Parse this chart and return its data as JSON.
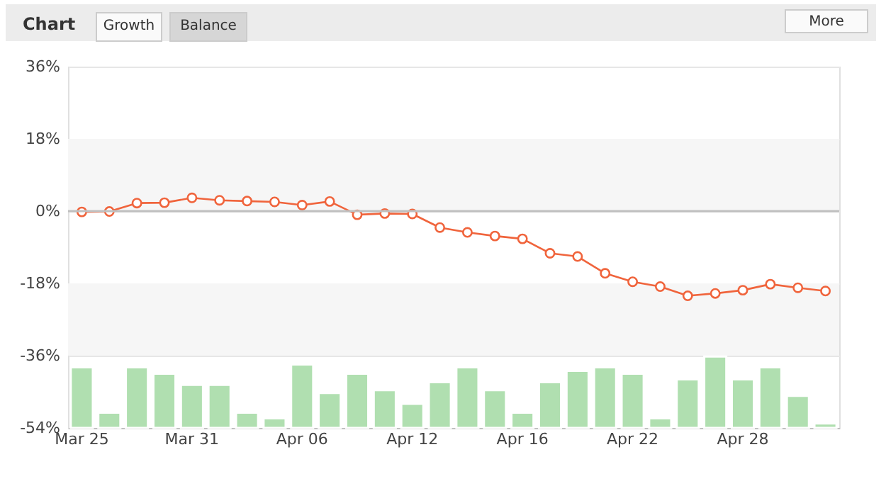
{
  "chart_data": {
    "type": "line",
    "title": "Chart",
    "annotations": [
      "Growth",
      "Balance",
      "More"
    ],
    "categories": [
      "Mar 25",
      null,
      null,
      null,
      "Mar 31",
      null,
      null,
      null,
      "Apr 06",
      null,
      null,
      null,
      "Apr 12",
      null,
      null,
      null,
      "Apr 16",
      null,
      null,
      null,
      "Apr 22",
      null,
      null,
      null,
      "Apr 28",
      null,
      null,
      null
    ],
    "series": [
      {
        "type": "bar",
        "color": "#b0dfb0",
        "base": [
          -54,
          -54,
          -54,
          -54,
          -54,
          -54,
          -54,
          -54,
          -54,
          -54,
          -54,
          -54,
          -54,
          -54,
          -54,
          -54,
          -54,
          -54,
          -54,
          -54,
          -54,
          -54,
          -54,
          -54,
          -54,
          -54,
          -54,
          -54
        ],
        "values": [
          15.1,
          3.8,
          15.1,
          13.5,
          10.7,
          10.7,
          3.8,
          2.4,
          15.8,
          8.7,
          13.5,
          9.4,
          6.0,
          11.4,
          15.1,
          9.4,
          3.8,
          11.4,
          14.2,
          15.1,
          13.5,
          2.4,
          12.1,
          17.8,
          12.1,
          15.1,
          8.0,
          1.1
        ]
      },
      {
        "color": "#f0643c",
        "marker": "circle",
        "values": [
          -0.2,
          -0.1,
          2.0,
          2.1,
          3.3,
          2.7,
          2.5,
          2.3,
          1.5,
          2.4,
          -0.9,
          -0.6,
          -0.7,
          -4.1,
          -5.3,
          -6.2,
          -6.9,
          -10.5,
          -11.3,
          -15.5,
          -17.6,
          -18.8,
          -21.1,
          -20.5,
          -19.7,
          -18.2,
          -19.1,
          -19.9
        ]
      }
    ],
    "ylim": [
      -54,
      36
    ],
    "yticks": [
      {
        "value": -54,
        "label": "-54%"
      },
      {
        "value": -36,
        "label": "-36%"
      },
      {
        "value": -18,
        "label": "-18%"
      },
      {
        "value": 0,
        "label": "0%"
      },
      {
        "value": 18,
        "label": "18%"
      },
      {
        "value": 36,
        "label": "36%"
      }
    ],
    "grid": "y",
    "bands": [
      {
        "axis": "y",
        "from": 0,
        "to": 18,
        "color": "#f6f6f6"
      },
      {
        "axis": "y",
        "from": -36,
        "to": -18,
        "color": "#f6f6f6"
      }
    ],
    "ref_lines": [
      {
        "axis": "y",
        "value": 0,
        "color": "#c0c0c0"
      }
    ]
  }
}
